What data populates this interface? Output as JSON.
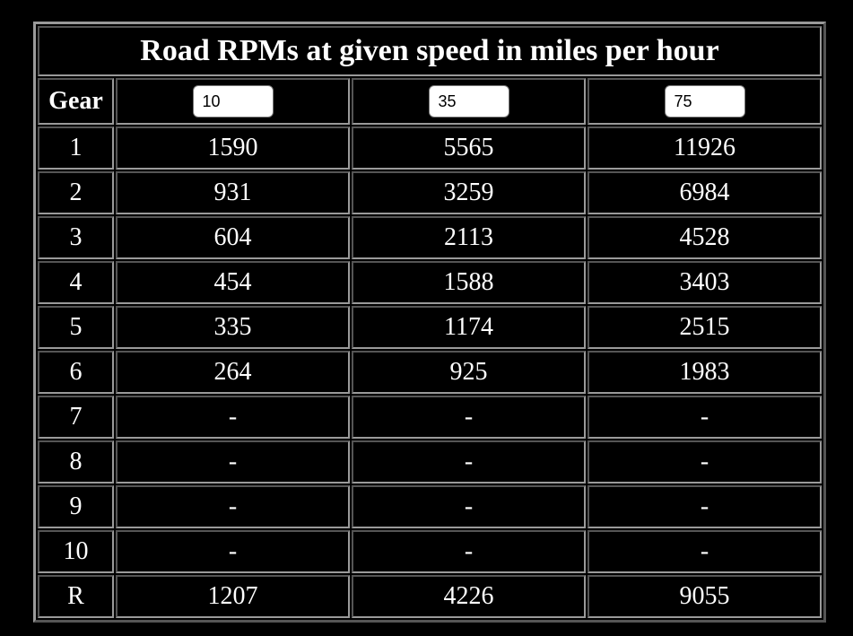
{
  "table": {
    "title": "Road RPMs at given speed in miles per hour",
    "gear_header": "Gear",
    "speeds": [
      "10",
      "35",
      "75"
    ],
    "rows": [
      {
        "gear": "1",
        "values": [
          "1590",
          "5565",
          "11926"
        ]
      },
      {
        "gear": "2",
        "values": [
          "931",
          "3259",
          "6984"
        ]
      },
      {
        "gear": "3",
        "values": [
          "604",
          "2113",
          "4528"
        ]
      },
      {
        "gear": "4",
        "values": [
          "454",
          "1588",
          "3403"
        ]
      },
      {
        "gear": "5",
        "values": [
          "335",
          "1174",
          "2515"
        ]
      },
      {
        "gear": "6",
        "values": [
          "264",
          "925",
          "1983"
        ]
      },
      {
        "gear": "7",
        "values": [
          "-",
          "-",
          "-"
        ]
      },
      {
        "gear": "8",
        "values": [
          "-",
          "-",
          "-"
        ]
      },
      {
        "gear": "9",
        "values": [
          "-",
          "-",
          "-"
        ]
      },
      {
        "gear": "10",
        "values": [
          "-",
          "-",
          "-"
        ]
      },
      {
        "gear": "R",
        "values": [
          "1207",
          "4226",
          "9055"
        ]
      }
    ]
  }
}
